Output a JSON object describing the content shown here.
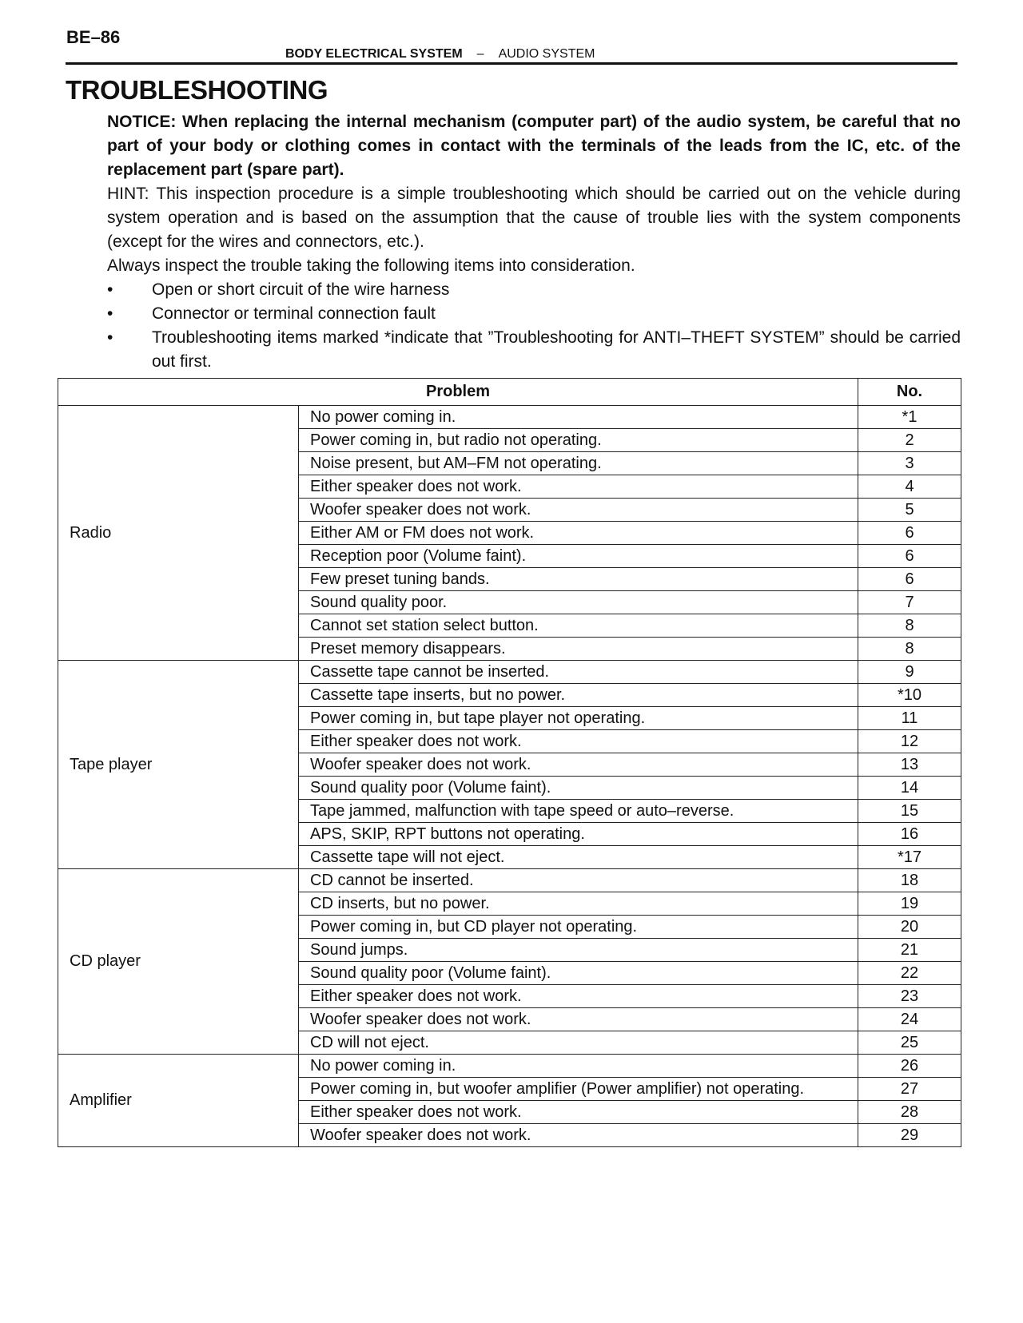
{
  "header": {
    "page_number": "BE–86",
    "section": "BODY ELECTRICAL SYSTEM",
    "separator": "–",
    "subsection": "AUDIO SYSTEM"
  },
  "title": "TROUBLESHOOTING",
  "notice": "NOTICE: When replacing the internal mechanism (computer part) of the audio system, be careful that no part of your body or clothing comes in contact with the terminals of the leads from the IC, etc. of the replacement part (spare part).",
  "hint": "HINT: This inspection procedure is a simple troubleshooting which should be carried out on the vehicle during system operation and is based on the assumption that the cause of trouble lies with the system components (except for the wires and connectors, etc.).",
  "always": "Always inspect the trouble taking the following items into consideration.",
  "bullets": [
    "Open or short circuit of the wire harness",
    "Connector or terminal connection fault",
    "Troubleshooting items marked *indicate that ”Troubleshooting for ANTI–THEFT SYSTEM” should be carried out first."
  ],
  "table": {
    "headers": {
      "problem": "Problem",
      "no": "No."
    },
    "groups": [
      {
        "category": "Radio",
        "rows": [
          [
            "No power coming in.",
            "*1"
          ],
          [
            "Power coming in, but radio not operating.",
            "2"
          ],
          [
            "Noise present, but AM–FM not operating.",
            "3"
          ],
          [
            "Either speaker does not work.",
            "4"
          ],
          [
            "Woofer speaker does not work.",
            "5"
          ],
          [
            "Either AM or FM does not work.",
            "6"
          ],
          [
            "Reception poor (Volume faint).",
            "6"
          ],
          [
            "Few preset tuning bands.",
            "6"
          ],
          [
            "Sound quality poor.",
            "7"
          ],
          [
            "Cannot set station select button.",
            "8"
          ],
          [
            "Preset memory disappears.",
            "8"
          ]
        ]
      },
      {
        "category": "Tape player",
        "rows": [
          [
            "Cassette tape cannot be inserted.",
            "9"
          ],
          [
            "Cassette tape inserts, but no power.",
            "*10"
          ],
          [
            "Power coming in, but tape player not operating.",
            "11"
          ],
          [
            "Either speaker does not work.",
            "12"
          ],
          [
            "Woofer speaker does not work.",
            "13"
          ],
          [
            "Sound quality poor (Volume faint).",
            "14"
          ],
          [
            "Tape jammed, malfunction with tape speed or auto–reverse.",
            "15"
          ],
          [
            "APS, SKIP, RPT buttons not operating.",
            "16"
          ],
          [
            "Cassette tape will not eject.",
            "*17"
          ]
        ]
      },
      {
        "category": "CD player",
        "rows": [
          [
            "CD cannot be inserted.",
            "18"
          ],
          [
            "CD inserts, but no power.",
            "19"
          ],
          [
            "Power coming in, but CD player not operating.",
            "20"
          ],
          [
            "Sound jumps.",
            "21"
          ],
          [
            "Sound quality poor (Volume faint).",
            "22"
          ],
          [
            "Either speaker does not work.",
            "23"
          ],
          [
            "Woofer speaker does not work.",
            "24"
          ],
          [
            "CD will not eject.",
            "25"
          ]
        ]
      },
      {
        "category": "Amplifier",
        "rows": [
          [
            "No power coming in.",
            "26"
          ],
          [
            "Power coming in, but woofer amplifier (Power amplifier) not operating.",
            "27"
          ],
          [
            "Either speaker does not work.",
            "28"
          ],
          [
            "Woofer speaker does not work.",
            "29"
          ]
        ]
      }
    ]
  }
}
